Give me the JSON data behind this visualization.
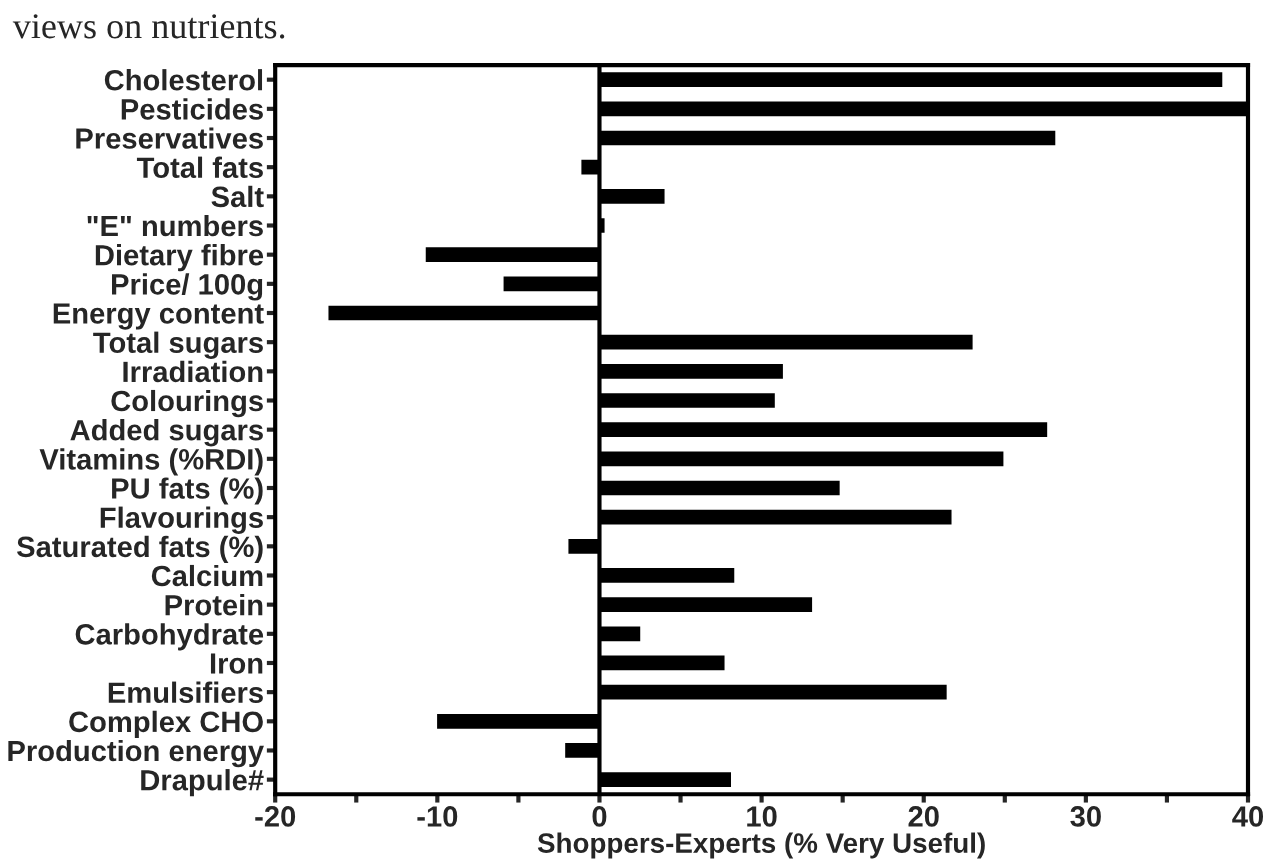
{
  "chart_data": {
    "type": "bar",
    "orientation": "horizontal",
    "title": "views on nutrients.",
    "xlabel": "Shoppers-Experts (% Very Useful)",
    "categories": [
      "Cholesterol",
      "Pesticides",
      "Preservatives",
      "Total fats",
      "Salt",
      "\"E\" numbers",
      "Dietary fibre",
      "Price/ 100g",
      "Energy content",
      "Total sugars",
      "Irradiation",
      "Colourings",
      "Added sugars",
      "Vitamins (%RDI)",
      "PU fats (%)",
      "Flavourings",
      "Saturated fats (%)",
      "Calcium",
      "Protein",
      "Carbohydrate",
      "Iron",
      "Emulsifiers",
      "Complex CHO",
      "Production energy",
      "Drapule#"
    ],
    "values": [
      38.5,
      40,
      28.2,
      -1.2,
      4.1,
      0.4,
      -10.8,
      -6,
      -16.8,
      23.1,
      11.4,
      10.9,
      27.7,
      25,
      14.9,
      21.8,
      -2,
      8.4,
      13.2,
      2.6,
      7.8,
      21.5,
      -10.1,
      -2.2,
      8.2
    ],
    "color": "#000000",
    "xlim": [
      -20,
      40
    ],
    "xticks": [
      -20,
      {
        "value": -15,
        "label": null
      },
      -10,
      {
        "value": -5,
        "label": null
      },
      0,
      {
        "value": 5,
        "label": null
      },
      10,
      {
        "value": 15,
        "label": null
      },
      20,
      {
        "value": 25,
        "label": null
      },
      30,
      {
        "value": 35,
        "label": null
      },
      40
    ],
    "ref_lines": [
      {
        "axis": "x",
        "value": 0,
        "color": "#000000"
      }
    ],
    "grid": false,
    "legend": false
  }
}
